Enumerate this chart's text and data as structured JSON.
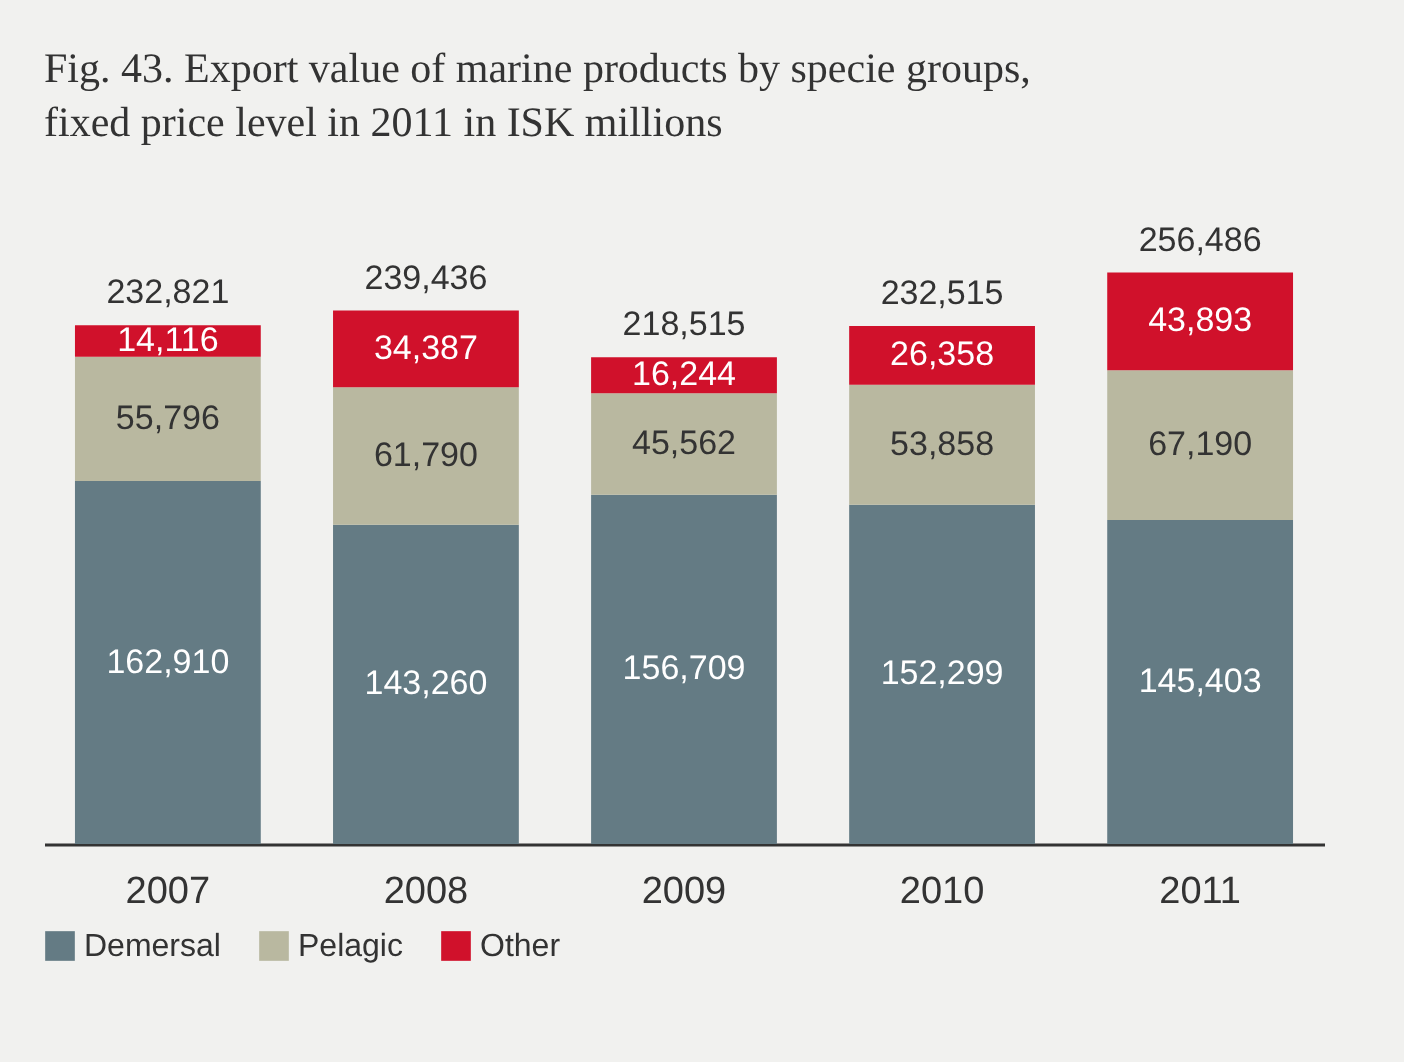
{
  "chart_data": {
    "type": "bar",
    "title": "Fig. 43. Export value of marine products by specie groups, fixed price level in 2011 in ISK millions",
    "categories": [
      "2007",
      "2008",
      "2009",
      "2010",
      "2011"
    ],
    "stacked": true,
    "legend": "bottom",
    "totals": [
      "232,821",
      "239,436",
      "218,515",
      "232,515",
      "256,486"
    ],
    "series": [
      {
        "name": "Demersal",
        "color": "#647b84",
        "values": [
          162910,
          143260,
          156709,
          152299,
          145403
        ],
        "value_labels": [
          "162,910",
          "143,260",
          "156,709",
          "152,299",
          "145,403"
        ]
      },
      {
        "name": "Pelagic",
        "color": "#b9b8a0",
        "values": [
          55796,
          61790,
          45562,
          53858,
          67190
        ],
        "value_labels": [
          "55,796",
          "61,790",
          "45,562",
          "53,858",
          "67,190"
        ]
      },
      {
        "name": "Other",
        "color": "#d0112b",
        "values": [
          14116,
          34387,
          16244,
          26358,
          43893
        ],
        "value_labels": [
          "14,116",
          "34,387",
          "16,244",
          "26,358",
          "43,893"
        ]
      }
    ]
  }
}
